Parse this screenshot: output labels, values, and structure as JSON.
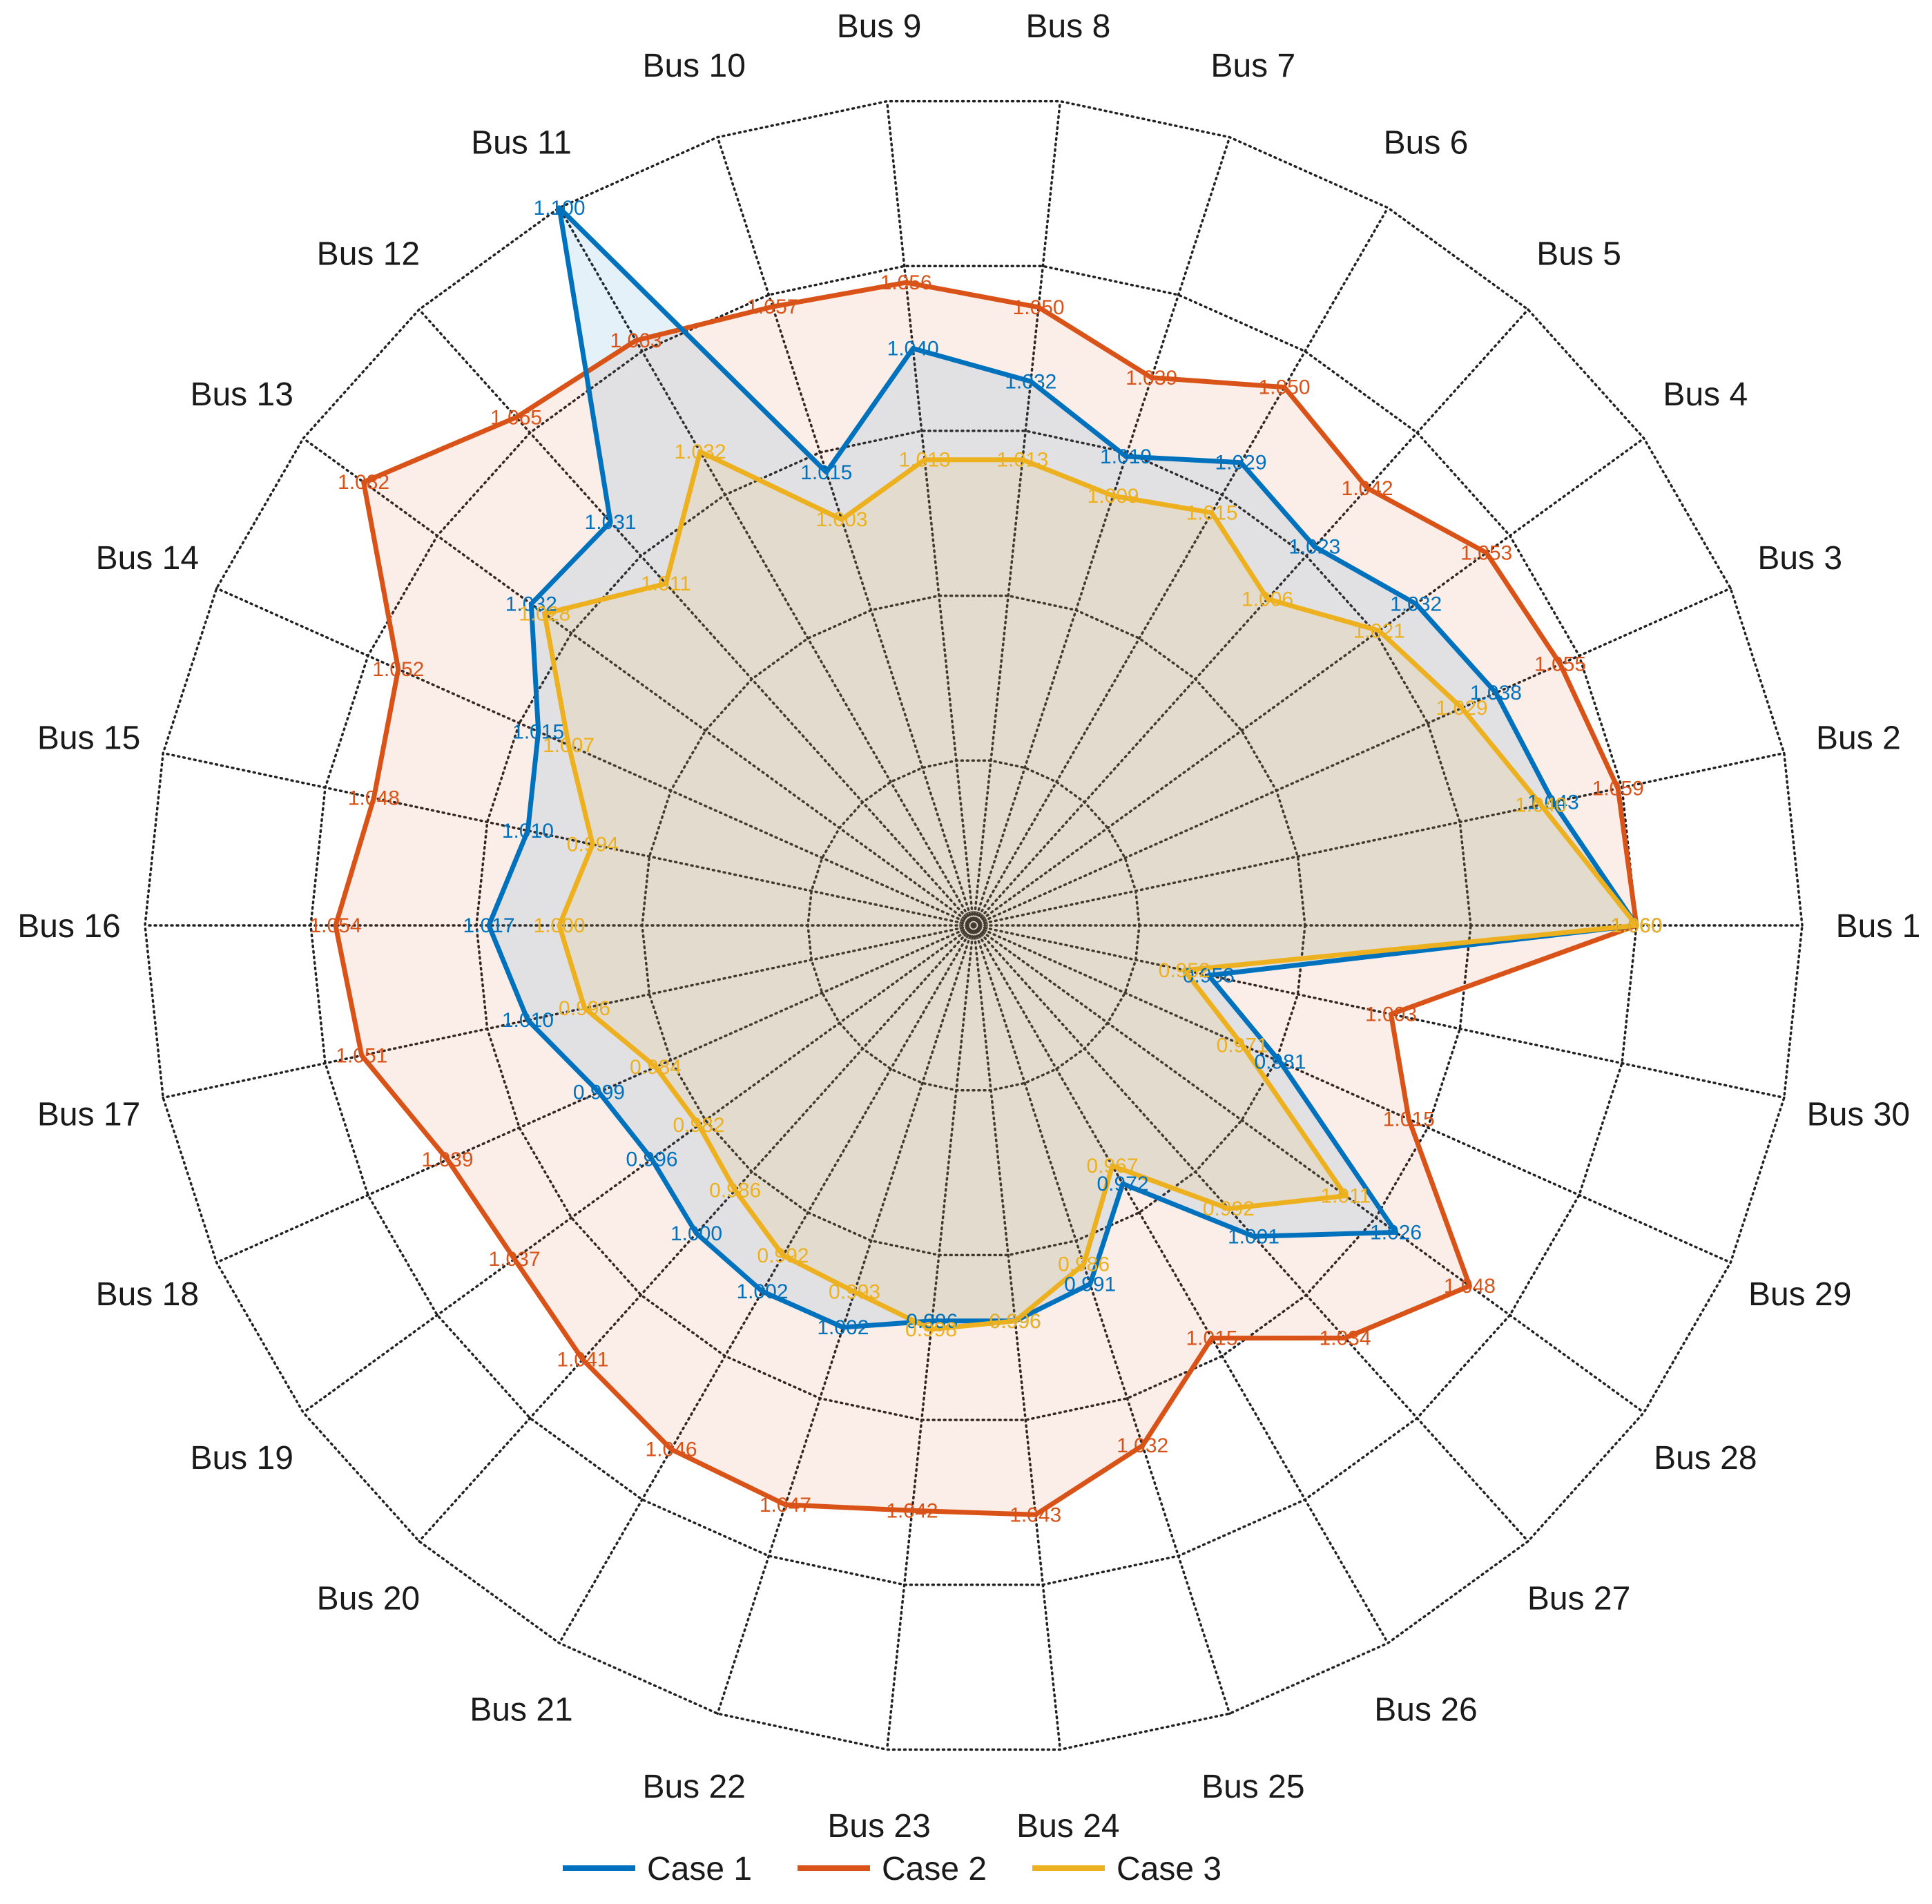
{
  "chart_data": {
    "type": "radar",
    "categories": [
      "Bus 1",
      "Bus 2",
      "Bus 3",
      "Bus 4",
      "Bus 5",
      "Bus 6",
      "Bus 7",
      "Bus 8",
      "Bus 9",
      "Bus 10",
      "Bus 11",
      "Bus 12",
      "Bus 13",
      "Bus 14",
      "Bus 15",
      "Bus 16",
      "Bus 17",
      "Bus 18",
      "Bus 19",
      "Bus 20",
      "Bus 21",
      "Bus 22",
      "Bus 23",
      "Bus 24",
      "Bus 25",
      "Bus 26",
      "Bus 27",
      "Bus 28",
      "Bus 29",
      "Bus 30"
    ],
    "range": [
      0.9,
      1.1
    ],
    "rings": 5,
    "grid": true,
    "legend_position": "bottom",
    "series": [
      {
        "name": "Case 1",
        "color": "#0072BD",
        "values": [
          1.06,
          1.043,
          1.038,
          1.032,
          1.023,
          1.029,
          1.019,
          1.032,
          1.04,
          1.015,
          1.1,
          1.031,
          1.032,
          1.015,
          1.01,
          1.017,
          1.01,
          0.999,
          0.996,
          1.0,
          1.002,
          1.002,
          0.996,
          0.996,
          0.991,
          0.972,
          1.001,
          1.026,
          0.981,
          0.958
        ]
      },
      {
        "name": "Case 2",
        "color": "#D95319",
        "values": [
          1.06,
          1.059,
          1.055,
          1.053,
          1.042,
          1.05,
          1.039,
          1.05,
          1.056,
          1.057,
          1.063,
          1.065,
          1.082,
          1.052,
          1.048,
          1.054,
          1.051,
          1.039,
          1.037,
          1.041,
          1.046,
          1.047,
          1.042,
          1.043,
          1.032,
          1.015,
          1.034,
          1.048,
          1.015,
          1.003
        ]
      },
      {
        "name": "Case 3",
        "color": "#EDB120",
        "values": [
          1.06,
          1.04,
          1.029,
          1.021,
          1.006,
          1.015,
          1.009,
          1.013,
          1.013,
          1.003,
          1.032,
          1.011,
          1.028,
          1.007,
          0.994,
          1.0,
          0.996,
          0.984,
          0.982,
          0.986,
          0.992,
          0.993,
          0.998,
          0.996,
          0.986,
          0.967,
          0.992,
          1.011,
          0.971,
          0.952
        ]
      }
    ]
  }
}
